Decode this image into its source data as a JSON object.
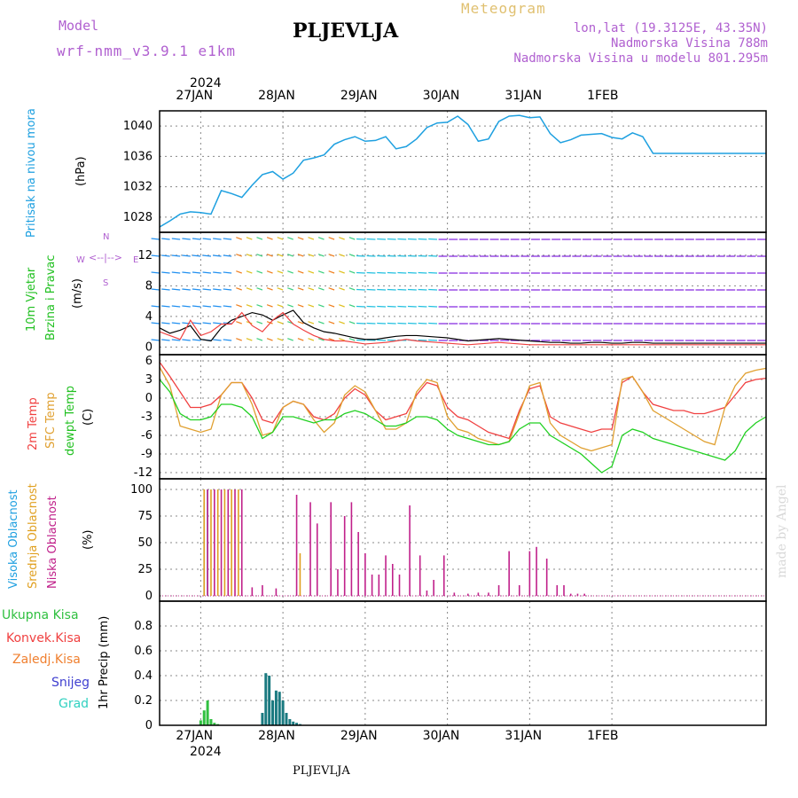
{
  "header": {
    "model_label": "Model",
    "model_value": "wrf-nmm_v3.9.1 e1km",
    "station": "PLJEVLJA",
    "meteogram": "Meteogram",
    "lonlat": "lon,lat (19.3125E, 43.35N)",
    "altitude": "Nadmorska Visina 788m",
    "model_altitude": "Nadmorska Visina u modelu 801.295m",
    "footer_station": "PLJEVLJA",
    "watermark": "made by Angel"
  },
  "x_axis": {
    "year": "2024",
    "days": [
      "27JAN",
      "28JAN",
      "29JAN",
      "30JAN",
      "31JAN",
      "1FEB"
    ]
  },
  "panels": {
    "pressure": {
      "label": "Pritisak na nivou mora",
      "unit": "(hPa)"
    },
    "wind": {
      "label1": "10m Vjetar",
      "label2": "Brzina i Pravac",
      "unit": "(m/s)",
      "compass_n": "N",
      "compass_s": "S",
      "compass_w": "W",
      "compass_e": "E"
    },
    "temp": {
      "label1": "2m Temp",
      "label2": "SFC Temp",
      "label3": "dewpt Temp",
      "unit": "(C)"
    },
    "cloud": {
      "label1": "Visoka Oblacnost",
      "label2": "Srednja Oblacnost",
      "label3": "Niska Oblacnost",
      "unit": "(%)"
    },
    "precip": {
      "label1": "Ukupna Kisa",
      "label2": "Konvek.Kisa",
      "label3": "Zaledj.Kisa",
      "label4": "Snijeg",
      "label5": "Grad",
      "unit": "1hr Precip (mm)"
    }
  },
  "colors": {
    "pressure": "#1ea0e0",
    "temp2m": "#f04040",
    "sfc": "#e0a030",
    "dewpt": "#20d020",
    "high_cloud": "#20a0e0",
    "mid_cloud": "#e0a020",
    "low_cloud": "#c0208a",
    "total_rain": "#30c040",
    "snow": "#4040d0",
    "grid": "#888888"
  },
  "chart_data": [
    {
      "type": "line",
      "name": "pressure",
      "x_unit": "hours from 26JAN 12UTC",
      "ylim": [
        1026,
        1042
      ],
      "yticks": [
        1028,
        1032,
        1036,
        1040
      ],
      "x": [
        0,
        3,
        6,
        9,
        12,
        15,
        18,
        21,
        24,
        27,
        30,
        33,
        36,
        39,
        42,
        45,
        48,
        51,
        54,
        57,
        60,
        63,
        66,
        69,
        72,
        75,
        78,
        81,
        84,
        87,
        90,
        93,
        96,
        99,
        102,
        105,
        108,
        111,
        114,
        117,
        120,
        123,
        126,
        129,
        132,
        135,
        138,
        141,
        144,
        147,
        150,
        153,
        156,
        159,
        162,
        165,
        168,
        171,
        174,
        177
      ],
      "values": [
        1026.7,
        1027.5,
        1028.4,
        1028.7,
        1028.6,
        1028.4,
        1031.5,
        1031.1,
        1030.6,
        1032.2,
        1033.6,
        1034.0,
        1033.0,
        1033.8,
        1035.5,
        1035.8,
        1036.2,
        1037.6,
        1038.2,
        1038.6,
        1038.0,
        1038.1,
        1038.6,
        1037.0,
        1037.3,
        1038.3,
        1039.8,
        1040.4,
        1040.5,
        1041.3,
        1040.2,
        1038.0,
        1038.3,
        1040.6,
        1041.3,
        1041.4,
        1041.1,
        1041.2,
        1039.0,
        1037.8,
        1038.2,
        1038.8,
        1038.9,
        1039.0,
        1038.5,
        1038.3,
        1039.1,
        1038.6,
        1036.4,
        1036.4,
        1036.4,
        1036.4,
        1036.4,
        1036.4,
        1036.4,
        1036.4,
        1036.4,
        1036.4,
        1036.4,
        1036.4
      ]
    },
    {
      "type": "line",
      "name": "wind_speed",
      "ylim": [
        -1,
        15
      ],
      "yticks": [
        0,
        4,
        8,
        12
      ],
      "x": [
        0,
        3,
        6,
        9,
        12,
        15,
        18,
        21,
        24,
        27,
        30,
        33,
        36,
        39,
        42,
        45,
        48,
        51,
        54,
        57,
        60,
        63,
        66,
        69,
        72,
        75,
        78,
        81,
        84,
        87,
        90,
        93,
        96,
        99,
        102,
        105,
        108,
        111,
        114,
        117,
        120,
        123,
        126,
        129,
        132,
        135,
        138,
        141,
        144,
        147,
        150,
        153,
        156,
        159,
        162,
        165,
        168,
        171,
        174,
        177
      ],
      "values": [
        2.5,
        1.8,
        2.2,
        2.8,
        1.0,
        0.8,
        2.5,
        3.5,
        4.0,
        4.5,
        4.2,
        3.5,
        4.2,
        4.8,
        3.2,
        2.5,
        2.0,
        1.8,
        1.5,
        1.2,
        1.0,
        1.0,
        1.2,
        1.4,
        1.5,
        1.5,
        1.4,
        1.3,
        1.2,
        1.0,
        0.8,
        0.9,
        1.0,
        1.1,
        1.0,
        0.9,
        0.8,
        0.7,
        0.6,
        0.6,
        0.5,
        0.5,
        0.6,
        0.6,
        0.5,
        0.5,
        0.6,
        0.6,
        0.5,
        0.5,
        0.5,
        0.5,
        0.5,
        0.5,
        0.5,
        0.5,
        0.5,
        0.5,
        0.5,
        0.5
      ],
      "gust": [
        2.0,
        1.5,
        1.0,
        3.5,
        1.5,
        2.0,
        3.0,
        3.0,
        4.5,
        2.8,
        2.0,
        3.5,
        4.5,
        3.0,
        2.2,
        1.5,
        1.0,
        0.8,
        0.8,
        0.6,
        0.4,
        0.5,
        0.6,
        0.8,
        1.0,
        0.8,
        0.7,
        0.6,
        0.5,
        0.4,
        0.3,
        0.4,
        0.5,
        0.6,
        0.5,
        0.4,
        0.3,
        0.3,
        0.3,
        0.3,
        0.3,
        0.3,
        0.3,
        0.3,
        0.3,
        0.3,
        0.3,
        0.3,
        0.3,
        0.3,
        0.3,
        0.3,
        0.3,
        0.3,
        0.3,
        0.3,
        0.3,
        0.3,
        0.3,
        0.3
      ]
    },
    {
      "type": "line",
      "name": "temperature",
      "ylim": [
        -13,
        7
      ],
      "yticks": [
        -12,
        -9,
        -6,
        -3,
        0,
        3,
        6
      ],
      "x": [
        0,
        3,
        6,
        9,
        12,
        15,
        18,
        21,
        24,
        27,
        30,
        33,
        36,
        39,
        42,
        45,
        48,
        51,
        54,
        57,
        60,
        63,
        66,
        69,
        72,
        75,
        78,
        81,
        84,
        87,
        90,
        93,
        96,
        99,
        102,
        105,
        108,
        111,
        114,
        117,
        120,
        123,
        126,
        129,
        132,
        135,
        138,
        141,
        144,
        147,
        150,
        153,
        156,
        159,
        162,
        165,
        168,
        171,
        174,
        177
      ],
      "series": [
        {
          "name": "2m Temp",
          "values": [
            5.8,
            3.5,
            1.0,
            -1.5,
            -1.5,
            -1.0,
            0.5,
            2.5,
            2.5,
            0.0,
            -3.5,
            -4.0,
            -1.5,
            -0.5,
            -1.0,
            -3.0,
            -3.5,
            -2.5,
            0.0,
            1.5,
            0.5,
            -2.0,
            -3.5,
            -3.0,
            -2.5,
            0.5,
            2.5,
            2.0,
            -1.5,
            -3.0,
            -3.5,
            -4.5,
            -5.5,
            -6.0,
            -6.5,
            -2.0,
            1.5,
            2.0,
            -3.0,
            -4.0,
            -4.5,
            -5.0,
            -5.5,
            -5.0,
            -5.0,
            2.5,
            3.5,
            1.0,
            -1.0,
            -1.5,
            -2.0,
            -2.0,
            -2.5,
            -2.5,
            -2.0,
            -1.5,
            0.5,
            2.5,
            3.0,
            3.2
          ]
        },
        {
          "name": "SFC Temp",
          "values": [
            5.0,
            2.0,
            -4.5,
            -5.0,
            -5.5,
            -5.0,
            0.5,
            2.5,
            2.5,
            -1.0,
            -6.0,
            -5.5,
            -1.5,
            -0.5,
            -1.0,
            -3.5,
            -5.5,
            -4.0,
            0.5,
            2.0,
            1.0,
            -2.0,
            -5.0,
            -5.0,
            -4.0,
            1.0,
            3.0,
            2.5,
            -3.0,
            -5.0,
            -5.5,
            -6.5,
            -7.0,
            -7.5,
            -7.0,
            -2.5,
            2.0,
            2.5,
            -4.0,
            -6.0,
            -7.0,
            -8.0,
            -8.5,
            -8.0,
            -7.5,
            3.0,
            3.5,
            1.0,
            -2.0,
            -3.0,
            -4.0,
            -5.0,
            -6.0,
            -7.0,
            -7.5,
            -1.5,
            2.0,
            4.0,
            4.5,
            4.8
          ]
        },
        {
          "name": "dewpt Temp",
          "values": [
            3.0,
            1.0,
            -2.5,
            -3.5,
            -3.5,
            -3.0,
            -1.0,
            -1.0,
            -1.5,
            -3.0,
            -6.5,
            -5.5,
            -3.0,
            -3.0,
            -3.5,
            -4.0,
            -3.5,
            -3.5,
            -2.5,
            -2.0,
            -2.5,
            -3.5,
            -4.5,
            -4.5,
            -4.0,
            -3.0,
            -3.0,
            -3.5,
            -5.0,
            -6.0,
            -6.5,
            -7.0,
            -7.5,
            -7.5,
            -7.0,
            -5.0,
            -4.0,
            -4.0,
            -6.0,
            -7.0,
            -8.0,
            -9.0,
            -10.5,
            -12.0,
            -11.0,
            -6.0,
            -5.0,
            -5.5,
            -6.5,
            -7.0,
            -7.5,
            -8.0,
            -8.5,
            -9.0,
            -9.5,
            -10.0,
            -8.5,
            -5.5,
            -4.0,
            -3.0
          ]
        }
      ]
    },
    {
      "type": "bar",
      "name": "cloud_cover",
      "ylim": [
        -5,
        110
      ],
      "yticks": [
        0,
        25,
        50,
        75,
        100
      ],
      "series": [
        {
          "name": "Visoka Oblacnost",
          "x": [
            13,
            14
          ],
          "values": [
            88,
            100
          ]
        },
        {
          "name": "Srednja Oblacnost",
          "x": [
            13,
            15,
            17,
            19,
            21,
            23,
            41
          ],
          "values": [
            100,
            100,
            100,
            100,
            100,
            100,
            40
          ]
        },
        {
          "name": "Niska Oblacnost",
          "x": [
            14,
            16,
            18,
            20,
            22,
            24,
            27,
            30,
            34,
            40,
            44,
            46,
            50,
            52,
            54,
            56,
            58,
            60,
            62,
            64,
            66,
            68,
            70,
            73,
            76,
            78,
            80,
            83,
            86,
            90,
            93,
            96,
            99,
            102,
            105,
            108,
            110,
            113,
            116,
            118,
            120,
            122,
            124
          ],
          "values": [
            100,
            100,
            100,
            100,
            100,
            100,
            8,
            10,
            7,
            95,
            88,
            68,
            88,
            25,
            75,
            88,
            60,
            40,
            20,
            20,
            38,
            30,
            20,
            85,
            38,
            5,
            15,
            38,
            3,
            2,
            3,
            3,
            10,
            42,
            10,
            42,
            46,
            35,
            10,
            10,
            2,
            2,
            2
          ]
        }
      ]
    },
    {
      "type": "bar",
      "name": "precipitation",
      "ylim": [
        0,
        1.0
      ],
      "yticks": [
        0,
        0.2,
        0.4,
        0.6,
        0.8
      ],
      "series": [
        {
          "name": "Ukupna Kisa",
          "x": [
            12,
            13,
            14,
            15,
            16,
            17
          ],
          "values": [
            0.04,
            0.12,
            0.2,
            0.05,
            0.02,
            0.01
          ]
        },
        {
          "name": "Snijeg",
          "x": [
            30,
            31,
            32,
            33,
            34,
            35,
            36,
            37,
            38,
            39,
            40,
            41
          ],
          "values": [
            0.1,
            0.42,
            0.4,
            0.2,
            0.28,
            0.27,
            0.2,
            0.1,
            0.05,
            0.03,
            0.02,
            0.01
          ]
        }
      ]
    }
  ]
}
